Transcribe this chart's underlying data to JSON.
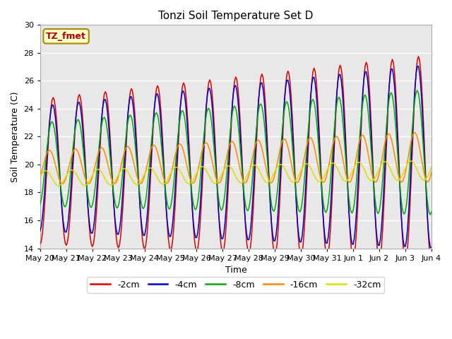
{
  "title": "Tonzi Soil Temperature Set D",
  "ylabel": "Soil Temperature (C)",
  "xlabel": "Time",
  "ylim": [
    14,
    30
  ],
  "yticks": [
    14,
    16,
    18,
    20,
    22,
    24,
    26,
    28,
    30
  ],
  "bg_color": "#e8e8e8",
  "lines": {
    "-2cm": {
      "color": "#dd0000"
    },
    "-4cm": {
      "color": "#0000cc"
    },
    "-8cm": {
      "color": "#00aa00"
    },
    "-16cm": {
      "color": "#ff8800"
    },
    "-32cm": {
      "color": "#dddd00"
    }
  },
  "legend_order": [
    "-2cm",
    "-4cm",
    "-8cm",
    "-16cm",
    "-32cm"
  ],
  "annotation_text": "TZ_fmet",
  "annotation_color": "#aa0000",
  "annotation_bg": "#ffffcc",
  "annotation_border": "#aa8800",
  "amp_base": {
    "-2cm": 5.2,
    "-4cm": 4.5,
    "-8cm": 3.0,
    "-16cm": 1.2,
    "-32cm": 0.55
  },
  "amp_growth": {
    "-2cm": 0.15,
    "-4cm": 0.14,
    "-8cm": 0.1,
    "-16cm": 0.04,
    "-32cm": 0.01
  },
  "phase_hrs": {
    "-2cm": 0.0,
    "-4cm": 0.5,
    "-8cm": 1.2,
    "-16cm": 3.5,
    "-32cm": 7.0
  },
  "mean_base": {
    "-2cm": 19.5,
    "-4cm": 19.7,
    "-8cm": 20.0,
    "-16cm": 19.8,
    "-32cm": 19.0
  },
  "mean_growth": {
    "-2cm": 0.06,
    "-4cm": 0.06,
    "-8cm": 0.06,
    "-16cm": 0.05,
    "-32cm": 0.04
  }
}
